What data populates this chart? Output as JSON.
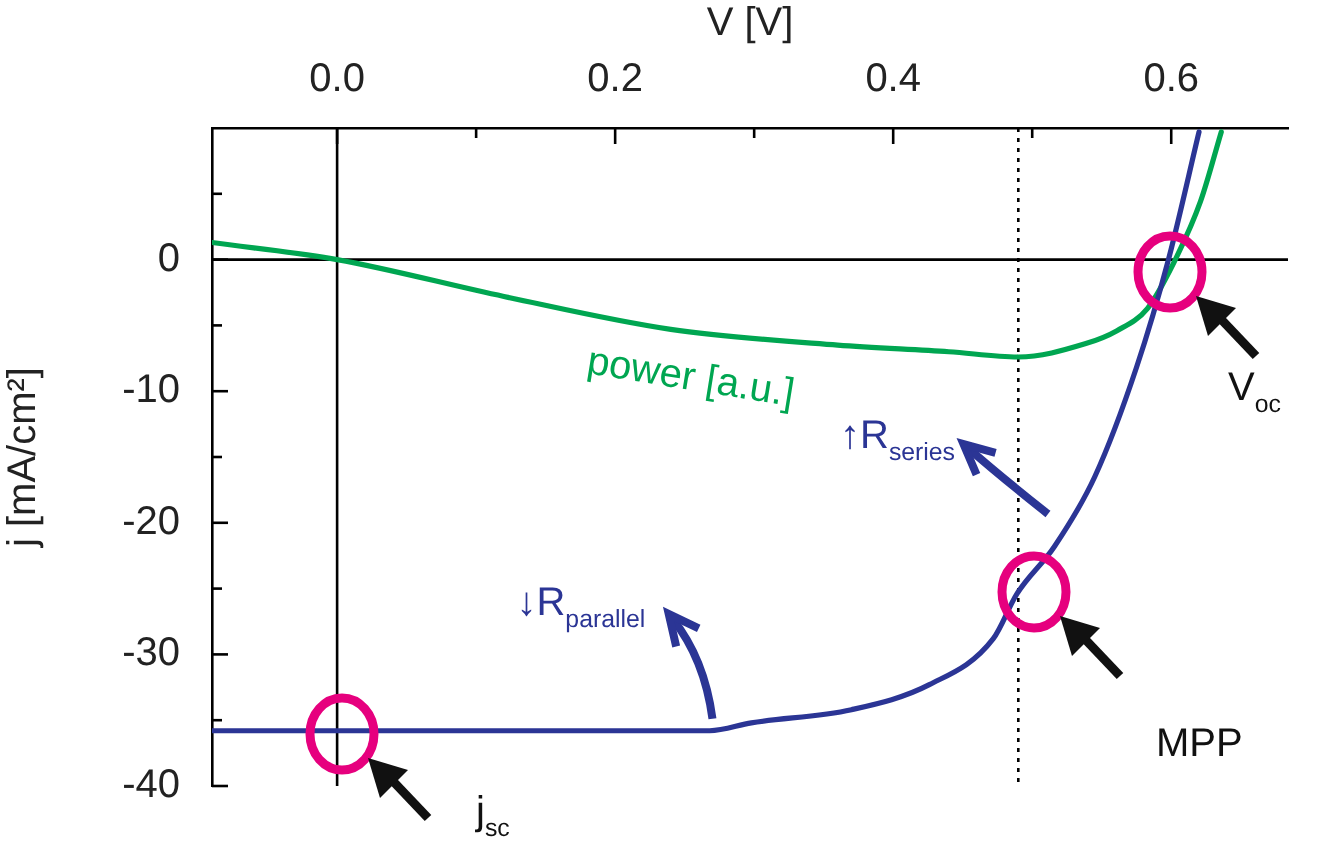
{
  "chart_data": {
    "type": "line",
    "xlabel": "V [V]",
    "ylabel": "j [mA/cm²]",
    "xlim": [
      -0.09,
      0.684
    ],
    "ylim": [
      -40,
      10
    ],
    "xticks": [
      {
        "value": 0,
        "label": "0.0"
      },
      {
        "value": 0.1,
        "label": null
      },
      {
        "value": 0.2,
        "label": "0.2"
      },
      {
        "value": 0.3,
        "label": null
      },
      {
        "value": 0.4,
        "label": "0.4"
      },
      {
        "value": 0.5,
        "label": null
      },
      {
        "value": 0.6,
        "label": "0.6"
      }
    ],
    "yticks": [
      -40,
      {
        "value": -35,
        "label": null
      },
      -30,
      {
        "value": -25,
        "label": null
      },
      -20,
      {
        "value": -15,
        "label": null
      },
      -10,
      {
        "value": -5,
        "label": null
      },
      0,
      {
        "value": 5,
        "label": null
      }
    ],
    "series": [
      {
        "color": "#2b3595",
        "x": [
          -0.09,
          0.268,
          0.298,
          0.37,
          0.426,
          0.472,
          0.489,
          0.516,
          0.545,
          0.575,
          0.598,
          0.62
        ],
        "values": [
          -35.8,
          -35.8,
          -35.2,
          -34.2,
          -32.3,
          -28.8,
          -25.4,
          -21.8,
          -16.5,
          -8.2,
          0,
          9.7
        ]
      },
      {
        "name": "power [a.u.]",
        "color": "#00a651",
        "x": [
          -0.09,
          0,
          0.12,
          0.24,
          0.36,
          0.44,
          0.49,
          0.538,
          0.561,
          0.583,
          0.602,
          0.621,
          0.636
        ],
        "values": [
          1.3,
          0,
          -2.8,
          -5.3,
          -6.5,
          -7.0,
          -7.4,
          -6.4,
          -5.4,
          -3.7,
          -0.2,
          4.4,
          9.7
        ]
      }
    ],
    "ref_lines": [
      {
        "axis": "x",
        "value": 0,
        "color": "#000000"
      },
      {
        "axis": "y",
        "value": 0,
        "color": "#000000"
      },
      {
        "axis": "x",
        "value": 0.49,
        "color": "#000000",
        "line_style": "dotted"
      }
    ],
    "annotations": [
      "j$_{sc}$",
      "MPP",
      "V$_{oc}$",
      "↑R$_{series}$",
      {
        "text": "↓R$_{parallel}$",
        "x": 0.27,
        "y": -35.8
      }
    ],
    "marker": "none",
    "line_style": "solid",
    "grid": false,
    "legend": false
  }
}
